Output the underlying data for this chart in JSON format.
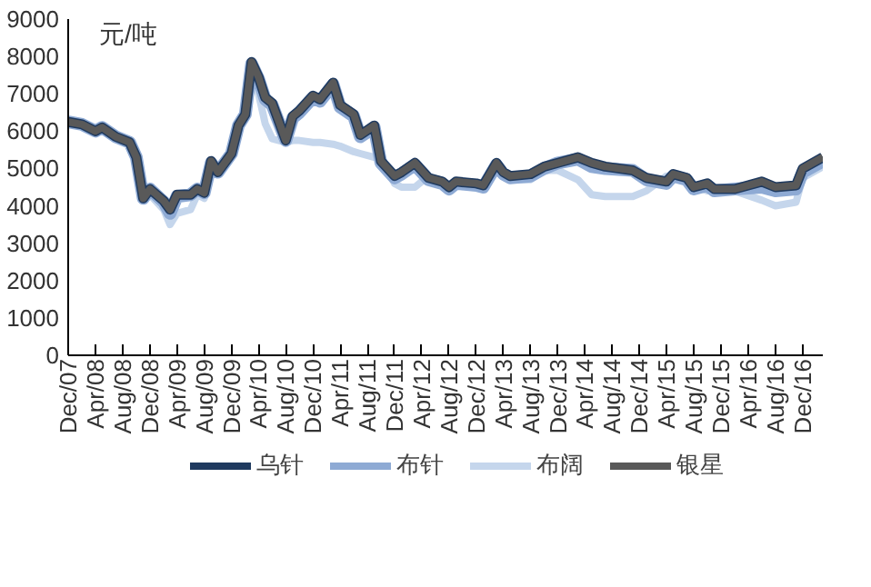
{
  "chart_data": {
    "type": "line",
    "ylabel": "元/吨",
    "x": [
      "2007-12",
      "2008-02",
      "2008-04",
      "2008-05",
      "2008-07",
      "2008-09",
      "2008-10",
      "2008-11",
      "2008-12",
      "2009-02",
      "2009-03",
      "2009-04",
      "2009-06",
      "2009-07",
      "2009-08",
      "2009-09",
      "2009-10",
      "2009-12",
      "2010-01",
      "2010-02",
      "2010-03",
      "2010-04",
      "2010-05",
      "2010-06",
      "2010-08",
      "2010-09",
      "2010-10",
      "2010-12",
      "2011-01",
      "2011-03",
      "2011-04",
      "2011-06",
      "2011-07",
      "2011-09",
      "2011-10",
      "2011-12",
      "2012-01",
      "2012-03",
      "2012-05",
      "2012-07",
      "2012-08",
      "2012-09",
      "2012-12",
      "2013-01",
      "2013-03",
      "2013-04",
      "2013-05",
      "2013-08",
      "2013-10",
      "2013-12",
      "2014-03",
      "2014-05",
      "2014-07",
      "2014-11",
      "2015-01",
      "2015-04",
      "2015-05",
      "2015-07",
      "2015-08",
      "2015-10",
      "2015-11",
      "2016-02",
      "2016-06",
      "2016-08",
      "2016-11",
      "2016-12",
      "2017-03"
    ],
    "series": [
      {
        "name": "布阔",
        "color": "#c5d6ec",
        "values": [
          6200,
          6150,
          6000,
          6050,
          5900,
          5750,
          5300,
          4300,
          4300,
          3900,
          3500,
          3800,
          3900,
          4300,
          4200,
          5100,
          4900,
          5300,
          6100,
          6400,
          7600,
          7000,
          6200,
          5800,
          5700,
          5750,
          5750,
          5700,
          5700,
          5650,
          5600,
          5450,
          5400,
          5300,
          5350,
          4600,
          4500,
          4500,
          4800,
          4600,
          4500,
          4600,
          4550,
          4500,
          5050,
          4850,
          4700,
          4700,
          4950,
          4950,
          4700,
          4300,
          4250,
          4250,
          4400,
          4800,
          4800,
          4700,
          4550,
          4400,
          4450,
          4400,
          4150,
          4000,
          4100,
          4750,
          5050
        ]
      },
      {
        "name": "布针",
        "color": "#8eaad4",
        "values": [
          6250,
          6180,
          6000,
          6100,
          5850,
          5700,
          5300,
          4200,
          4450,
          4100,
          3800,
          4250,
          4300,
          4450,
          4350,
          5150,
          4900,
          5400,
          6150,
          6450,
          7800,
          7400,
          6850,
          6700,
          5750,
          6350,
          6500,
          6900,
          6800,
          7250,
          6650,
          6400,
          5850,
          6100,
          5150,
          4750,
          4850,
          5100,
          4700,
          4600,
          4450,
          4600,
          4550,
          4500,
          5100,
          4850,
          4750,
          4800,
          5000,
          5150,
          5250,
          5050,
          5000,
          4950,
          4700,
          4600,
          4800,
          4700,
          4450,
          4550,
          4400,
          4450,
          4500,
          4400,
          4450,
          4900,
          5200
        ]
      },
      {
        "name": "乌针",
        "color": "#1f3a5f",
        "values": [
          6250,
          6180,
          6000,
          6100,
          5850,
          5700,
          5300,
          4200,
          4450,
          4130,
          3900,
          4300,
          4300,
          4450,
          4350,
          5200,
          4900,
          5400,
          6150,
          6450,
          7850,
          7450,
          6900,
          6750,
          5750,
          6400,
          6550,
          6950,
          6850,
          7300,
          6700,
          6450,
          5900,
          6150,
          5200,
          4800,
          4900,
          5150,
          4750,
          4650,
          4500,
          4650,
          4600,
          4550,
          5150,
          4900,
          4800,
          4850,
          5050,
          5150,
          5300,
          5150,
          5050,
          4950,
          4750,
          4650,
          4850,
          4750,
          4500,
          4600,
          4450,
          4450,
          4650,
          4500,
          4550,
          5000,
          5300
        ]
      },
      {
        "name": "银星",
        "color": "#595959",
        "values": [
          6250,
          6180,
          6000,
          6100,
          5850,
          5700,
          5300,
          4200,
          4450,
          4130,
          3900,
          4300,
          4300,
          4450,
          4350,
          5200,
          4900,
          5400,
          6150,
          6450,
          7850,
          7450,
          6900,
          6750,
          5750,
          6400,
          6550,
          6950,
          6850,
          7300,
          6700,
          6450,
          5900,
          6150,
          5200,
          4800,
          4900,
          5150,
          4750,
          4650,
          4500,
          4650,
          4600,
          4550,
          5150,
          4900,
          4800,
          4850,
          5050,
          5150,
          5300,
          5150,
          5050,
          4950,
          4750,
          4650,
          4850,
          4750,
          4500,
          4600,
          4450,
          4450,
          4650,
          4500,
          4550,
          5000,
          5300
        ]
      }
    ],
    "xlim": [
      "2007-12",
      "2017-03"
    ],
    "xticks": [
      {
        "value": "2007-12",
        "label": "Dec/07"
      },
      {
        "value": "2008-04",
        "label": "Apr/08"
      },
      {
        "value": "2008-08",
        "label": "Aug/08"
      },
      {
        "value": "2008-12",
        "label": "Dec/08"
      },
      {
        "value": "2009-04",
        "label": "Apr/09"
      },
      {
        "value": "2009-08",
        "label": "Aug/09"
      },
      {
        "value": "2009-12",
        "label": "Dec/09"
      },
      {
        "value": "2010-04",
        "label": "Apr/10"
      },
      {
        "value": "2010-08",
        "label": "Aug/10"
      },
      {
        "value": "2010-12",
        "label": "Dec/10"
      },
      {
        "value": "2011-04",
        "label": "Apr/11"
      },
      {
        "value": "2011-08",
        "label": "Aug/11"
      },
      {
        "value": "2011-12",
        "label": "Dec/11"
      },
      {
        "value": "2012-04",
        "label": "Apr/12"
      },
      {
        "value": "2012-08",
        "label": "Aug/12"
      },
      {
        "value": "2012-12",
        "label": "Dec/12"
      },
      {
        "value": "2013-04",
        "label": "Apr/13"
      },
      {
        "value": "2013-08",
        "label": "Aug/13"
      },
      {
        "value": "2013-12",
        "label": "Dec/13"
      },
      {
        "value": "2014-04",
        "label": "Apr/14"
      },
      {
        "value": "2014-08",
        "label": "Aug/14"
      },
      {
        "value": "2014-12",
        "label": "Dec/14"
      },
      {
        "value": "2015-04",
        "label": "Apr/15"
      },
      {
        "value": "2015-08",
        "label": "Aug/15"
      },
      {
        "value": "2015-12",
        "label": "Dec/15"
      },
      {
        "value": "2016-04",
        "label": "Apr/16"
      },
      {
        "value": "2016-08",
        "label": "Aug/16"
      },
      {
        "value": "2016-12",
        "label": "Dec/16"
      }
    ],
    "ylim": [
      0,
      9000
    ],
    "yticks": [
      0,
      1000,
      2000,
      3000,
      4000,
      5000,
      6000,
      7000,
      8000,
      9000
    ],
    "grid": false,
    "legend": "bottom",
    "line_style": "solid"
  }
}
